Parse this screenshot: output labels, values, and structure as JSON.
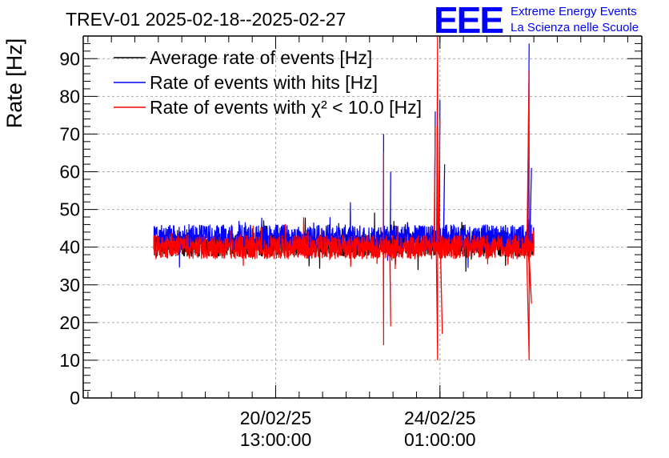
{
  "chart_data": {
    "type": "line",
    "title": "TREV-01 2025-02-18--2025-02-27",
    "ylabel": "Rate [Hz]",
    "xlabel": "",
    "ylim": [
      0,
      96
    ],
    "yticks": [
      0,
      10,
      20,
      30,
      40,
      50,
      60,
      70,
      80,
      90
    ],
    "x_range_days": [
      -4.1,
      7.8
    ],
    "x_major_ticks": [
      {
        "day": 0.0,
        "line1": "20/02/25",
        "line2": "13:00:00"
      },
      {
        "day": 3.5,
        "line1": "24/02/25",
        "line2": "01:00:00"
      }
    ],
    "grid": true,
    "legend_position": "top-left",
    "series": [
      {
        "name": "Average rate of events [Hz]",
        "color": "#000000",
        "baseline": 40.5,
        "noise": 3.0
      },
      {
        "name": "Rate of events with hits [Hz]",
        "color": "#0000ff",
        "baseline": 42.5,
        "noise": 3.5,
        "spikes": [
          {
            "day": 2.3,
            "value": 70
          },
          {
            "day": 2.45,
            "value": 60
          },
          {
            "day": 3.4,
            "value": 76
          },
          {
            "day": 3.5,
            "value": 79
          },
          {
            "day": 3.6,
            "value": 62
          },
          {
            "day": 5.4,
            "value": 94
          },
          {
            "day": 5.45,
            "value": 61
          }
        ]
      },
      {
        "name": "Rate of events with χ² < 10.0 [Hz]",
        "color": "#ff0000",
        "baseline": 40,
        "noise": 3.2,
        "spikes": [
          {
            "day": 2.3,
            "value": 65
          },
          {
            "day": 2.3,
            "value": 14
          },
          {
            "day": 2.45,
            "value": 19
          },
          {
            "day": 3.4,
            "value": 72
          },
          {
            "day": 3.45,
            "value": 96
          },
          {
            "day": 3.45,
            "value": 10
          },
          {
            "day": 3.5,
            "value": 74
          },
          {
            "day": 3.55,
            "value": 17
          },
          {
            "day": 5.4,
            "value": 87
          },
          {
            "day": 5.4,
            "value": 10
          },
          {
            "day": 5.45,
            "value": 25
          }
        ]
      }
    ],
    "data_x_start_day": -2.6,
    "data_x_end_day": 5.5
  },
  "logo": {
    "mark": "EEE",
    "line1": "Extreme Energy Events",
    "line2": "La Scienza nelle Scuole",
    "color": "#0000ff"
  }
}
